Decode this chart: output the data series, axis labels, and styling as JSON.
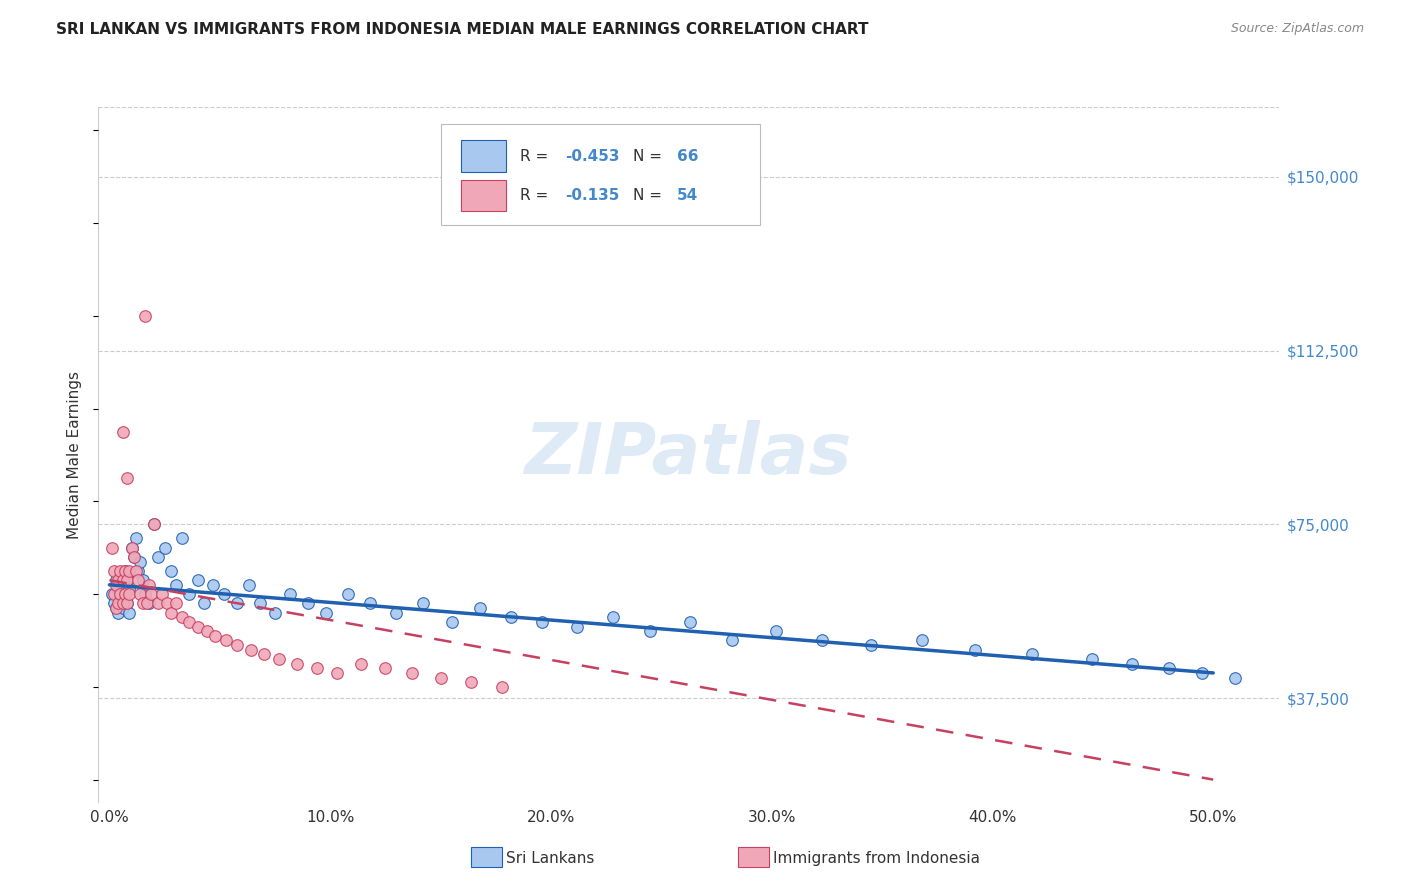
{
  "title": "SRI LANKAN VS IMMIGRANTS FROM INDONESIA MEDIAN MALE EARNINGS CORRELATION CHART",
  "source": "Source: ZipAtlas.com",
  "ylabel": "Median Male Earnings",
  "xlabel_ticks": [
    "0.0%",
    "10.0%",
    "20.0%",
    "30.0%",
    "40.0%",
    "50.0%"
  ],
  "xlabel_vals": [
    0.0,
    0.1,
    0.2,
    0.3,
    0.4,
    0.5
  ],
  "ytick_labels": [
    "$37,500",
    "$75,000",
    "$112,500",
    "$150,000"
  ],
  "ytick_vals": [
    37500,
    75000,
    112500,
    150000
  ],
  "ymin": 15000,
  "ymax": 165000,
  "xmin": -0.005,
  "xmax": 0.53,
  "r_sri": -0.453,
  "n_sri": 66,
  "r_indo": -0.135,
  "n_indo": 54,
  "color_sri": "#a8c8f0",
  "color_sri_line": "#2060b0",
  "color_sri_line_light": "#5090d0",
  "color_indo": "#f0a8b8",
  "color_indo_line": "#c84060",
  "watermark_color": "#c8ddf0",
  "watermark": "ZIPatlas",
  "legend_label_sri": "Sri Lankans",
  "legend_label_indo": "Immigrants from Indonesia",
  "sri_x": [
    0.001,
    0.002,
    0.003,
    0.003,
    0.004,
    0.004,
    0.005,
    0.005,
    0.006,
    0.006,
    0.007,
    0.007,
    0.008,
    0.008,
    0.009,
    0.009,
    0.01,
    0.011,
    0.012,
    0.013,
    0.014,
    0.015,
    0.016,
    0.018,
    0.02,
    0.022,
    0.025,
    0.028,
    0.03,
    0.033,
    0.036,
    0.04,
    0.043,
    0.047,
    0.052,
    0.058,
    0.063,
    0.068,
    0.075,
    0.082,
    0.09,
    0.098,
    0.108,
    0.118,
    0.13,
    0.142,
    0.155,
    0.168,
    0.182,
    0.196,
    0.212,
    0.228,
    0.245,
    0.263,
    0.282,
    0.302,
    0.323,
    0.345,
    0.368,
    0.392,
    0.418,
    0.445,
    0.463,
    0.48,
    0.495,
    0.51
  ],
  "sri_y": [
    60000,
    58000,
    63000,
    57000,
    61000,
    56000,
    64000,
    59000,
    62000,
    57000,
    65000,
    60000,
    63000,
    58000,
    61000,
    56000,
    70000,
    68000,
    72000,
    65000,
    67000,
    63000,
    60000,
    58000,
    75000,
    68000,
    70000,
    65000,
    62000,
    72000,
    60000,
    63000,
    58000,
    62000,
    60000,
    58000,
    62000,
    58000,
    56000,
    60000,
    58000,
    56000,
    60000,
    58000,
    56000,
    58000,
    54000,
    57000,
    55000,
    54000,
    53000,
    55000,
    52000,
    54000,
    50000,
    52000,
    50000,
    49000,
    50000,
    48000,
    47000,
    46000,
    45000,
    44000,
    43000,
    42000
  ],
  "indo_x": [
    0.001,
    0.002,
    0.002,
    0.003,
    0.003,
    0.004,
    0.004,
    0.005,
    0.005,
    0.006,
    0.006,
    0.007,
    0.007,
    0.008,
    0.008,
    0.009,
    0.009,
    0.01,
    0.011,
    0.012,
    0.013,
    0.014,
    0.015,
    0.016,
    0.017,
    0.018,
    0.019,
    0.02,
    0.022,
    0.024,
    0.026,
    0.028,
    0.03,
    0.033,
    0.036,
    0.04,
    0.044,
    0.048,
    0.053,
    0.058,
    0.064,
    0.07,
    0.077,
    0.085,
    0.094,
    0.103,
    0.114,
    0.125,
    0.137,
    0.15,
    0.164,
    0.178,
    0.006,
    0.008
  ],
  "indo_y": [
    70000,
    65000,
    60000,
    62000,
    57000,
    63000,
    58000,
    65000,
    60000,
    63000,
    58000,
    65000,
    60000,
    63000,
    58000,
    65000,
    60000,
    70000,
    68000,
    65000,
    63000,
    60000,
    58000,
    120000,
    58000,
    62000,
    60000,
    75000,
    58000,
    60000,
    58000,
    56000,
    58000,
    55000,
    54000,
    53000,
    52000,
    51000,
    50000,
    49000,
    48000,
    47000,
    46000,
    45000,
    44000,
    43000,
    45000,
    44000,
    43000,
    42000,
    41000,
    40000,
    95000,
    85000
  ]
}
